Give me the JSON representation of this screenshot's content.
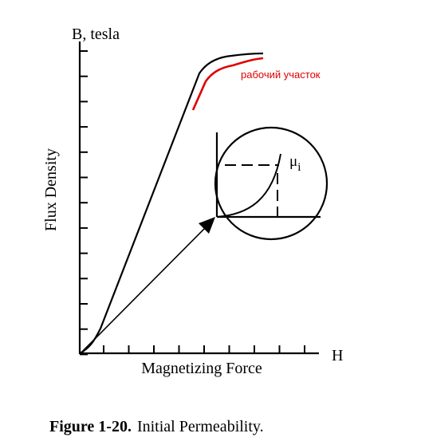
{
  "diagram": {
    "y_axis_unit_label": "B, tesla",
    "y_axis_label": "Flux Density",
    "x_axis_label": "Magnetizing Force",
    "x_axis_end_label": "H",
    "inset_symbol": "μ",
    "inset_symbol_subscript": "i",
    "annotation": "рабочий участок",
    "annotation_color": "#e00000",
    "line_color": "#000000"
  },
  "caption": {
    "figure_number": "Figure 1-20.",
    "text": "Initial Permeability."
  }
}
